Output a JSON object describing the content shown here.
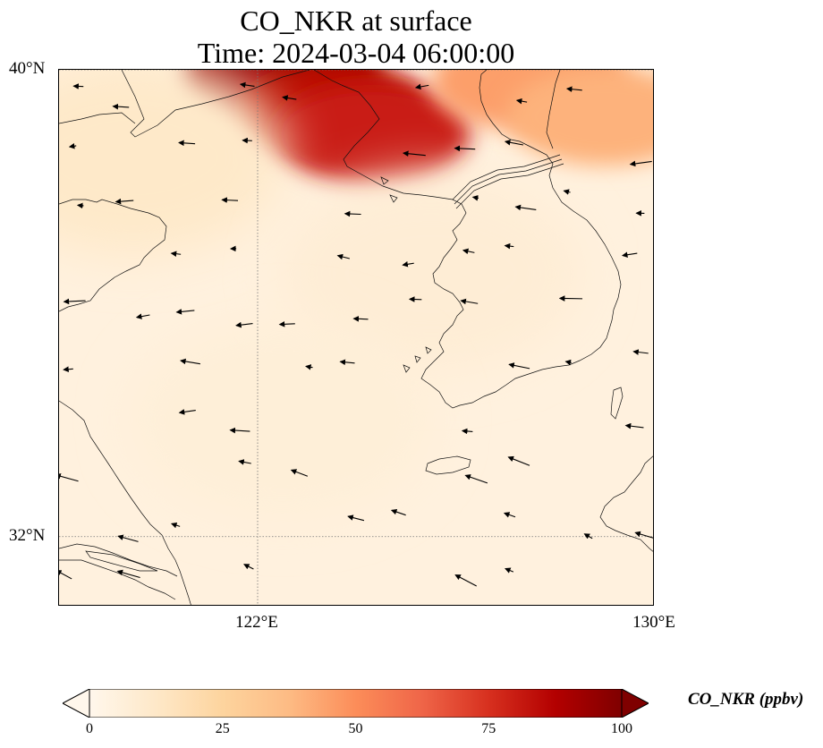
{
  "title": {
    "line1": "CO_NKR at surface",
    "line2": "Time: 2024-03-04 06:00:00"
  },
  "map": {
    "extent": {
      "lon_min": 118.0,
      "lon_max": 130.0,
      "lat_min": 30.8,
      "lat_max": 40.0
    },
    "lat_ticks": [
      {
        "value": 40,
        "label": "40°N"
      },
      {
        "value": 32,
        "label": "32°N"
      }
    ],
    "lon_ticks": [
      {
        "value": 122,
        "label": "122°E"
      },
      {
        "value": 130,
        "label": "130°E"
      }
    ],
    "gridlines": "dotted",
    "field": "CO_NKR",
    "field_hotspots_ppbv": [
      {
        "lon": 122.5,
        "lat": 39.9,
        "value": 95
      },
      {
        "lon": 123.5,
        "lat": 39.3,
        "value": 85
      },
      {
        "lon": 124.3,
        "lat": 38.9,
        "value": 80
      },
      {
        "lon": 127.5,
        "lat": 39.8,
        "value": 45
      },
      {
        "lon": 129.0,
        "lat": 39.2,
        "value": 40
      },
      {
        "lon": 119.5,
        "lat": 38.5,
        "value": 12
      },
      {
        "lon": 125.5,
        "lat": 36.5,
        "value": 8
      },
      {
        "lon": 122.5,
        "lat": 34.0,
        "value": 7
      }
    ],
    "background_ppbv": 5,
    "wind_vectors": "present"
  },
  "colorbar": {
    "label": "CO_NKR (ppbv)",
    "min": 0,
    "max": 100,
    "extend": "both",
    "colormap": "OrRd",
    "ticks": [
      {
        "value": 0,
        "label": "0"
      },
      {
        "value": 25,
        "label": "25"
      },
      {
        "value": 50,
        "label": "50"
      },
      {
        "value": 75,
        "label": "75"
      },
      {
        "value": 100,
        "label": "100"
      }
    ],
    "colors": [
      "#fff7ec",
      "#fee8c8",
      "#fdd49e",
      "#fdbb84",
      "#fc8d59",
      "#ef6548",
      "#d7301f",
      "#b30000",
      "#7f0000"
    ]
  }
}
